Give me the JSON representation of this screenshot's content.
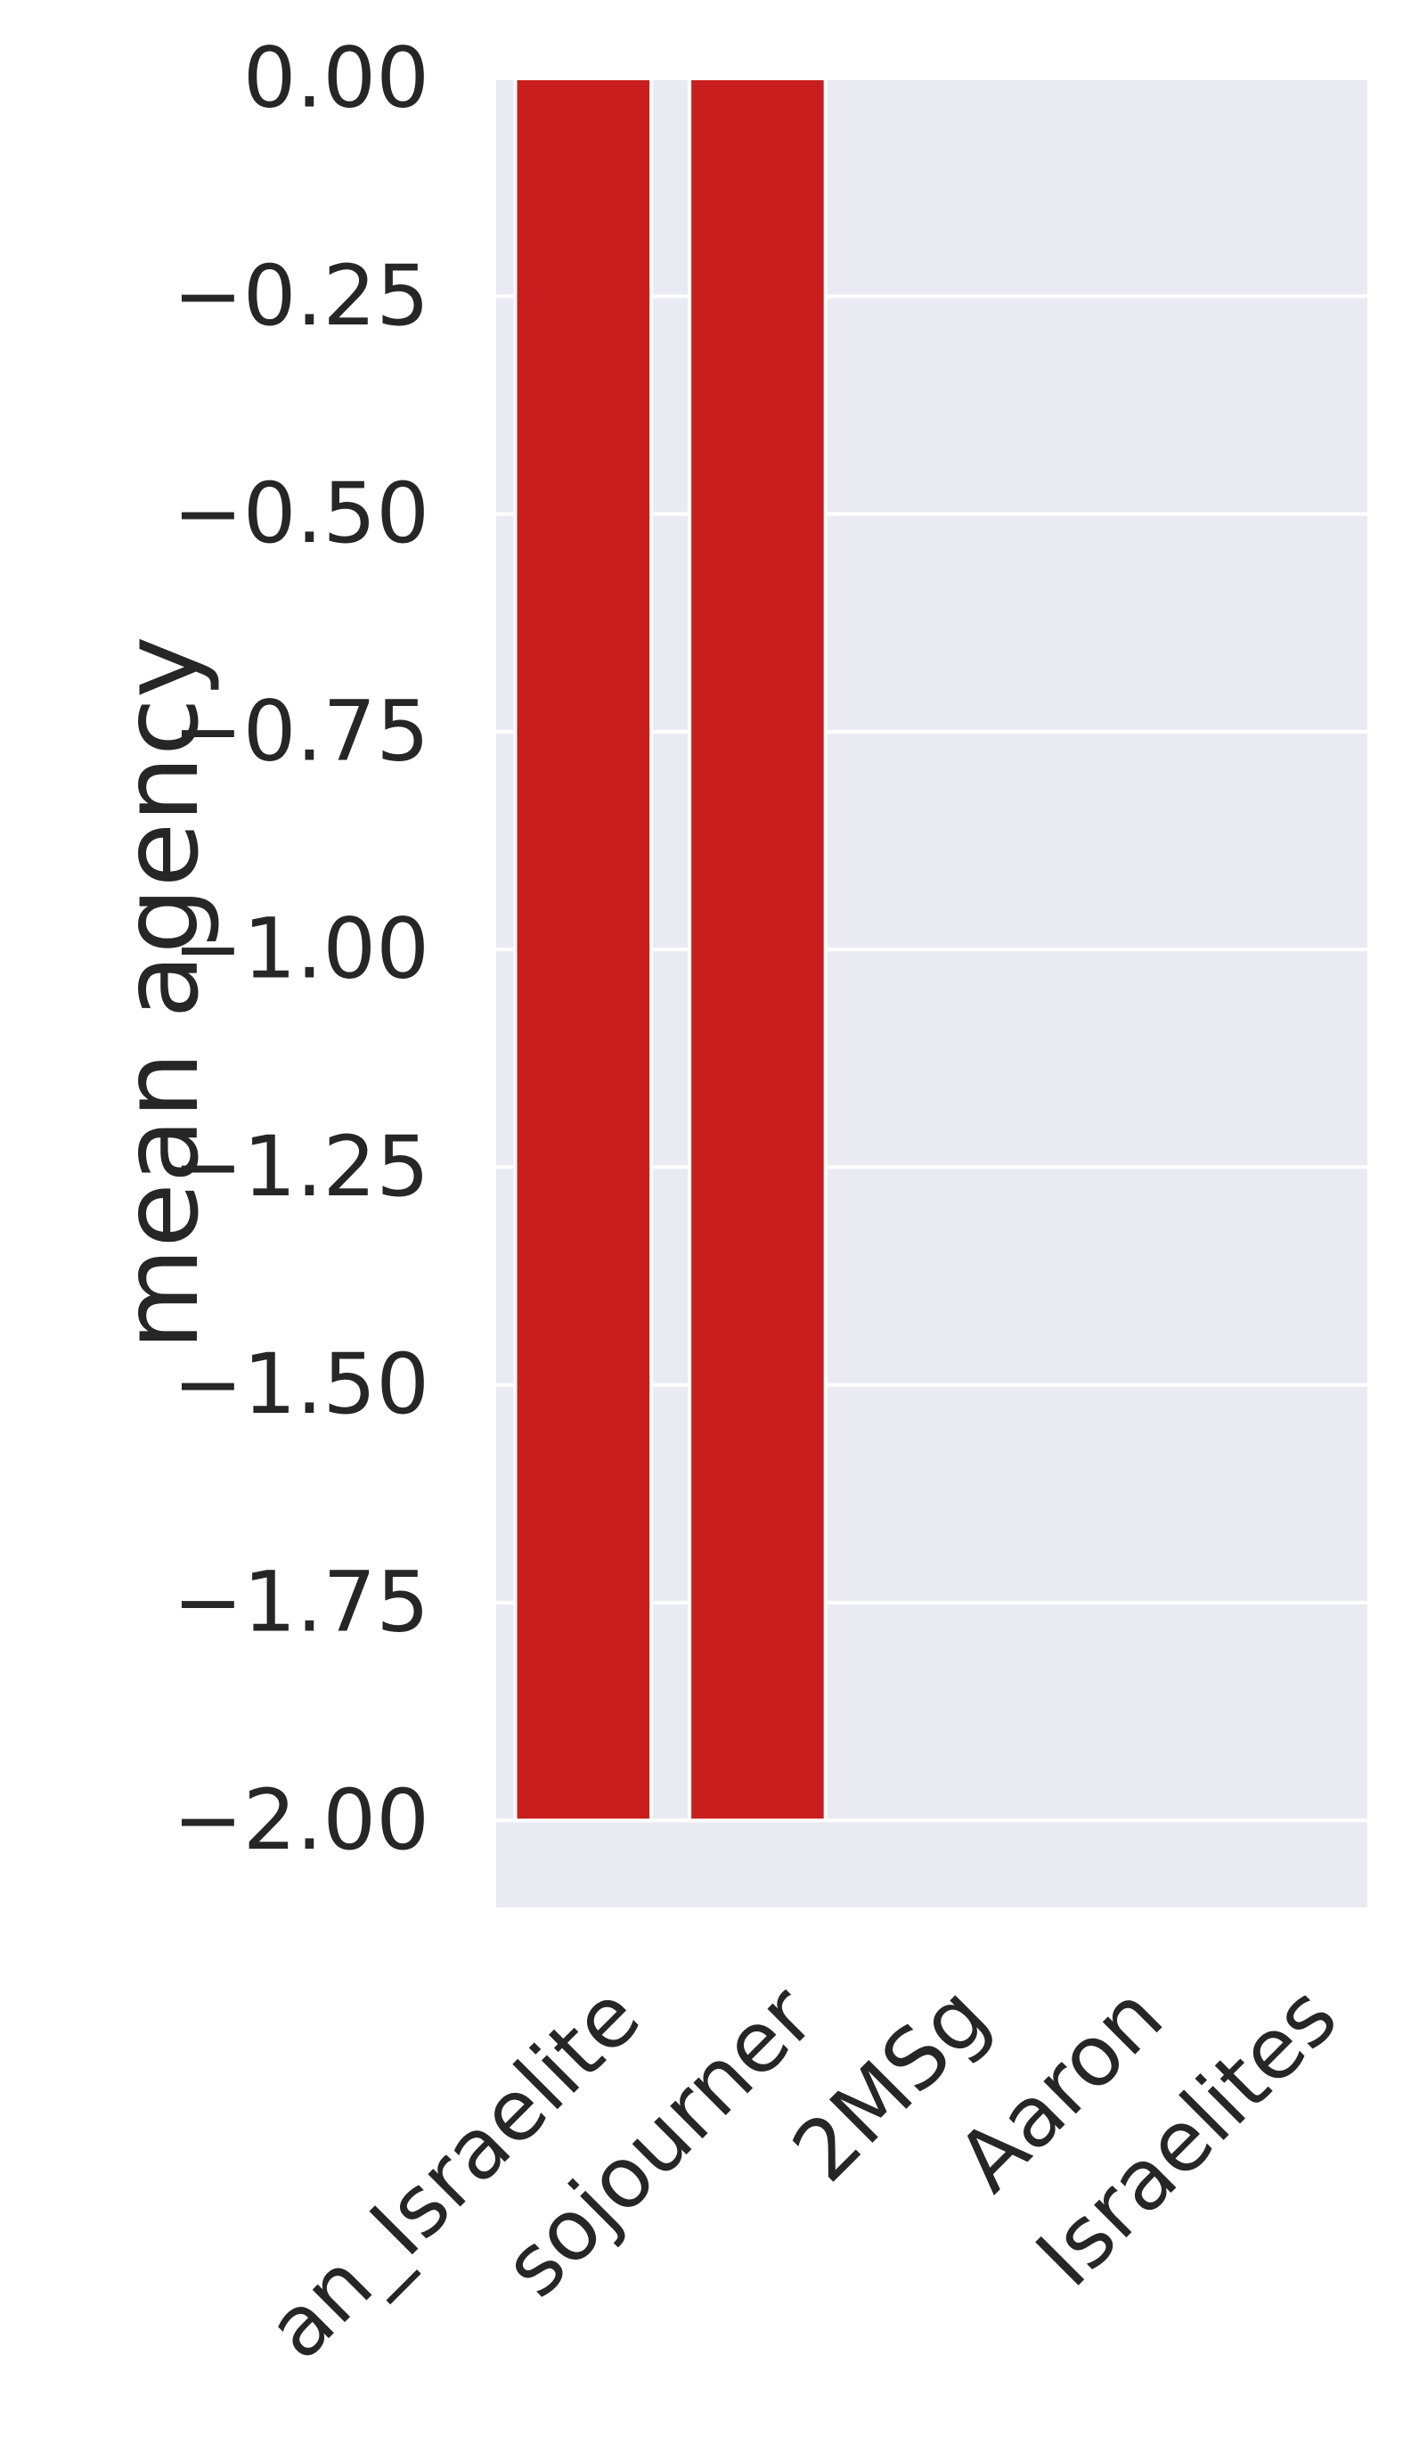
{
  "chart_data": {
    "type": "bar",
    "categories": [
      "an_Israelite",
      "sojourner",
      "2MSg",
      "Aaron",
      "Israelites"
    ],
    "values": [
      -2.0,
      -2.0,
      0,
      0,
      0
    ],
    "ylabel": "mean agency",
    "ylim": [
      -2.1,
      0.0
    ],
    "yticks": [
      0.0,
      -0.25,
      -0.5,
      -0.75,
      -1.0,
      -1.25,
      -1.5,
      -1.75,
      -2.0
    ],
    "ytick_labels": [
      "0.00",
      "−0.25",
      "−0.50",
      "−0.75",
      "−1.00",
      "−1.25",
      "−1.50",
      "−1.75",
      "−2.00"
    ],
    "grid": true,
    "style": "seaborn-darkgrid",
    "colors": {
      "bar": "#c81e1e",
      "plot_background": "#eaeaf2",
      "grid": "#ffffff",
      "text": "#262626"
    }
  }
}
